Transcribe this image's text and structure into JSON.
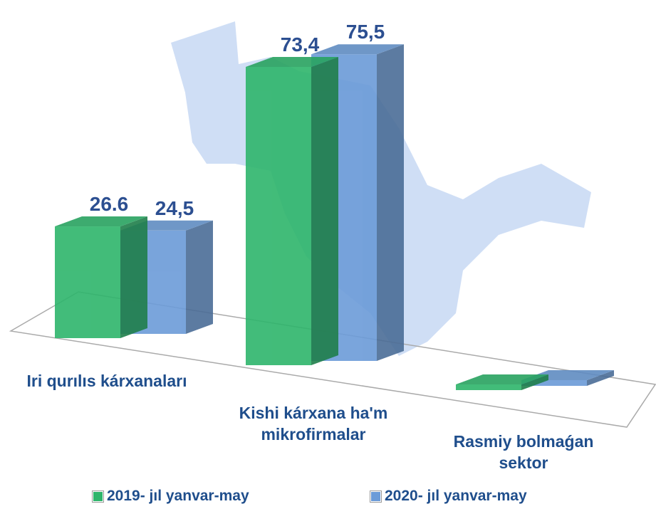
{
  "chart_data": {
    "type": "bar3d",
    "categories": [
      "Iri qurılıs kárxanaları",
      "Kishi kárxana ha'm mikrofirmalar",
      "Rasmiy bolmaǵan sektor"
    ],
    "series": [
      {
        "name": "2019- jıl yanvar-may",
        "color": "#2eb56b",
        "values": [
          26.6,
          73.4,
          0
        ],
        "value_labels": [
          "26.6",
          "73,4",
          null
        ]
      },
      {
        "name": "2020- jıl yanvar-may",
        "color": "#6b9bd8",
        "values": [
          24.5,
          75.5,
          0
        ],
        "value_labels": [
          "24,5",
          "75,5",
          null
        ]
      }
    ]
  }
}
